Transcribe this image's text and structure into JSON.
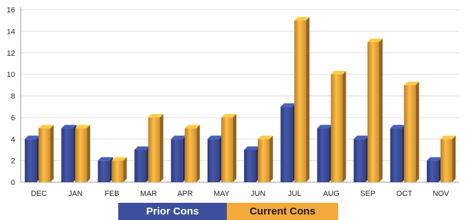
{
  "chart_data": {
    "type": "bar",
    "title": "",
    "xlabel": "",
    "ylabel": "",
    "ylim": [
      0,
      16
    ],
    "yticks": [
      0,
      2,
      4,
      6,
      8,
      10,
      12,
      14,
      16
    ],
    "grid": true,
    "legend_placement": "bottom",
    "categories": [
      "DEC",
      "JAN",
      "FEB",
      "MAR",
      "APR",
      "MAY",
      "JUN",
      "JUL",
      "AUG",
      "SEP",
      "OCT",
      "NOV"
    ],
    "series": [
      {
        "name": "Prior Cons",
        "color": "#3d4f9c",
        "values": [
          4,
          5,
          2,
          3,
          4,
          4,
          3,
          7,
          5,
          4,
          5,
          2
        ]
      },
      {
        "name": "Current Cons",
        "color": "#f4a93b",
        "values": [
          5,
          5,
          2,
          6,
          5,
          6,
          4,
          15,
          10,
          13,
          9,
          4
        ]
      }
    ]
  }
}
